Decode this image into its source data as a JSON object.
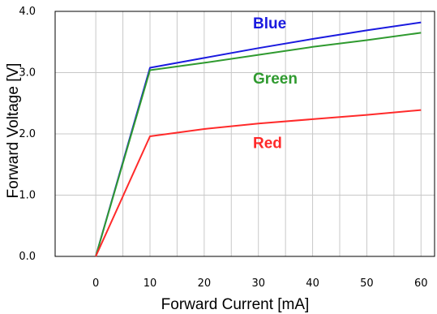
{
  "chart_data": {
    "type": "line",
    "title": "",
    "xlabel": "Forward Current [mA]",
    "ylabel": "Forward Voltage [V]",
    "xlim": [
      -7.5,
      62.5
    ],
    "ylim": [
      0,
      4.0
    ],
    "x_ticks": [
      0,
      10,
      20,
      30,
      40,
      50,
      60
    ],
    "x_tick_labels": [
      "0",
      "10",
      "20",
      "30",
      "40",
      "50",
      "60"
    ],
    "y_ticks": [
      0,
      1,
      2,
      3,
      4
    ],
    "y_tick_labels": [
      "0.0",
      "1.0",
      "2.0",
      "3.0",
      "4.0"
    ],
    "x_minor_gridlines": [
      5,
      15,
      25,
      35,
      45,
      55
    ],
    "grid": true,
    "series": [
      {
        "name": "Blue",
        "color": "#1a1adf",
        "points": [
          [
            0,
            0
          ],
          [
            10,
            3.08
          ],
          [
            20,
            3.24
          ],
          [
            30,
            3.4
          ],
          [
            40,
            3.55
          ],
          [
            50,
            3.69
          ],
          [
            60,
            3.82
          ]
        ],
        "label_at": [
          29,
          3.72
        ]
      },
      {
        "name": "Green",
        "color": "#2f9a2f",
        "points": [
          [
            0,
            0
          ],
          [
            10,
            3.04
          ],
          [
            20,
            3.16
          ],
          [
            30,
            3.29
          ],
          [
            40,
            3.42
          ],
          [
            50,
            3.53
          ],
          [
            60,
            3.65
          ]
        ],
        "label_at": [
          29,
          2.82
        ]
      },
      {
        "name": "Red",
        "color": "#ff2a2a",
        "points": [
          [
            0,
            0
          ],
          [
            10,
            1.96
          ],
          [
            20,
            2.08
          ],
          [
            30,
            2.17
          ],
          [
            40,
            2.24
          ],
          [
            50,
            2.31
          ],
          [
            60,
            2.39
          ]
        ],
        "label_at": [
          29,
          1.77
        ]
      }
    ]
  }
}
